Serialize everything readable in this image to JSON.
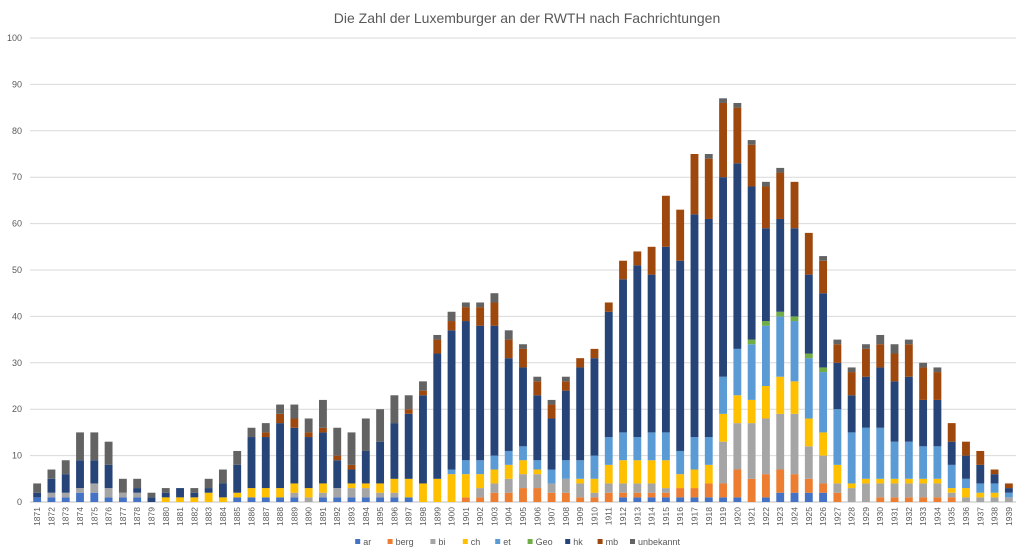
{
  "chart_data": {
    "type": "bar",
    "stacked": true,
    "title": "Die Zahl der Luxemburger an der RWTH nach Fachrichtungen",
    "xlabel": "",
    "ylabel": "",
    "ylim": [
      0,
      100
    ],
    "yticks": [
      0,
      10,
      20,
      30,
      40,
      50,
      60,
      70,
      80,
      90,
      100
    ],
    "grid": true,
    "legend_position": "bottom",
    "categories": [
      "1871",
      "1872",
      "1873",
      "1874",
      "1875",
      "1876",
      "1877",
      "1878",
      "1879",
      "1880",
      "1881",
      "1882",
      "1883",
      "1884",
      "1885",
      "1886",
      "1887",
      "1888",
      "1889",
      "1890",
      "1891",
      "1892",
      "1893",
      "1894",
      "1895",
      "1896",
      "1897",
      "1898",
      "1899",
      "1900",
      "1901",
      "1902",
      "1903",
      "1904",
      "1905",
      "1906",
      "1907",
      "1908",
      "1909",
      "1910",
      "1911",
      "1912",
      "1913",
      "1914",
      "1915",
      "1916",
      "1917",
      "1918",
      "1919",
      "1920",
      "1921",
      "1922",
      "1923",
      "1924",
      "1925",
      "1926",
      "1927",
      "1928",
      "1929",
      "1930",
      "1931",
      "1932",
      "1933",
      "1934",
      "1935",
      "1936",
      "1937",
      "1938",
      "1939"
    ],
    "series": [
      {
        "name": "ar",
        "color": "#4472C4",
        "values": [
          1,
          1,
          1,
          2,
          2,
          1,
          1,
          1,
          0,
          0,
          0,
          0,
          0,
          0,
          1,
          1,
          1,
          1,
          1,
          0,
          1,
          1,
          1,
          1,
          1,
          1,
          1,
          0,
          0,
          0,
          0,
          0,
          0,
          0,
          0,
          0,
          0,
          0,
          0,
          0,
          0,
          1,
          1,
          1,
          1,
          1,
          1,
          1,
          1,
          1,
          0,
          1,
          2,
          2,
          2,
          2,
          0,
          0,
          0,
          0,
          0,
          0,
          0,
          0,
          0,
          0,
          0,
          0,
          0
        ]
      },
      {
        "name": "berg",
        "color": "#ED7D31",
        "values": [
          0,
          0,
          0,
          0,
          0,
          0,
          0,
          0,
          0,
          0,
          0,
          0,
          0,
          0,
          0,
          0,
          0,
          0,
          0,
          0,
          0,
          0,
          0,
          0,
          0,
          0,
          0,
          0,
          0,
          0,
          1,
          1,
          2,
          2,
          3,
          3,
          2,
          2,
          1,
          1,
          2,
          1,
          1,
          1,
          1,
          2,
          2,
          3,
          3,
          6,
          5,
          5,
          5,
          4,
          3,
          2,
          2,
          0,
          0,
          1,
          1,
          1,
          1,
          1,
          1,
          0,
          0,
          0,
          0
        ]
      },
      {
        "name": "bi",
        "color": "#A5A5A5",
        "values": [
          0,
          1,
          1,
          1,
          2,
          2,
          1,
          1,
          0,
          0,
          0,
          0,
          0,
          0,
          0,
          0,
          0,
          0,
          1,
          1,
          1,
          2,
          2,
          2,
          1,
          1,
          0,
          0,
          0,
          0,
          0,
          2,
          2,
          3,
          3,
          3,
          2,
          3,
          3,
          1,
          2,
          2,
          2,
          2,
          1,
          0,
          0,
          0,
          9,
          10,
          12,
          12,
          12,
          13,
          7,
          6,
          2,
          3,
          4,
          3,
          3,
          3,
          3,
          3,
          1,
          1,
          1,
          1,
          1
        ]
      },
      {
        "name": "ch",
        "color": "#FFC000",
        "values": [
          0,
          0,
          0,
          0,
          0,
          0,
          0,
          0,
          0,
          1,
          1,
          1,
          2,
          1,
          1,
          2,
          2,
          2,
          2,
          2,
          2,
          0,
          1,
          1,
          2,
          3,
          4,
          4,
          5,
          6,
          5,
          3,
          3,
          3,
          3,
          1,
          0,
          0,
          1,
          3,
          4,
          5,
          5,
          5,
          6,
          3,
          4,
          4,
          6,
          6,
          5,
          7,
          8,
          7,
          6,
          5,
          4,
          1,
          1,
          1,
          1,
          1,
          1,
          1,
          1,
          2,
          1,
          1,
          0
        ]
      },
      {
        "name": "et",
        "color": "#5B9BD5",
        "values": [
          0,
          0,
          0,
          0,
          0,
          0,
          0,
          0,
          0,
          0,
          0,
          0,
          0,
          0,
          0,
          0,
          0,
          0,
          0,
          0,
          0,
          0,
          0,
          0,
          0,
          0,
          0,
          0,
          0,
          1,
          3,
          3,
          3,
          3,
          3,
          2,
          3,
          4,
          4,
          5,
          6,
          6,
          5,
          6,
          6,
          5,
          7,
          6,
          8,
          10,
          12,
          13,
          13,
          13,
          13,
          13,
          12,
          11,
          11,
          11,
          8,
          8,
          7,
          7,
          5,
          2,
          2,
          2,
          1
        ]
      },
      {
        "name": "Geo",
        "color": "#70AD47",
        "values": [
          0,
          0,
          0,
          0,
          0,
          0,
          0,
          0,
          0,
          0,
          0,
          0,
          0,
          0,
          0,
          0,
          0,
          0,
          0,
          0,
          0,
          0,
          0,
          0,
          0,
          0,
          0,
          0,
          0,
          0,
          0,
          0,
          0,
          0,
          0,
          0,
          0,
          0,
          0,
          0,
          0,
          0,
          0,
          0,
          0,
          0,
          0,
          0,
          0,
          0,
          1,
          1,
          1,
          1,
          1,
          1,
          0,
          0,
          0,
          0,
          0,
          0,
          0,
          0,
          0,
          0,
          0,
          0,
          0
        ]
      },
      {
        "name": "hk",
        "color": "#264478",
        "values": [
          1,
          3,
          4,
          6,
          5,
          5,
          0,
          1,
          1,
          1,
          2,
          1,
          1,
          3,
          6,
          11,
          11,
          14,
          12,
          11,
          11,
          6,
          3,
          7,
          9,
          12,
          14,
          19,
          27,
          30,
          30,
          29,
          28,
          20,
          17,
          14,
          11,
          15,
          20,
          21,
          27,
          33,
          37,
          34,
          40,
          41,
          48,
          47,
          43,
          40,
          33,
          20,
          20,
          19,
          17,
          16,
          10,
          8,
          11,
          13,
          13,
          14,
          10,
          10,
          5,
          5,
          4,
          2,
          1
        ]
      },
      {
        "name": "mb",
        "color": "#9E480E",
        "values": [
          0,
          0,
          0,
          0,
          0,
          0,
          0,
          0,
          0,
          0,
          0,
          0,
          0,
          0,
          0,
          0,
          1,
          2,
          2,
          1,
          1,
          1,
          1,
          0,
          0,
          0,
          1,
          1,
          3,
          2,
          3,
          4,
          5,
          4,
          4,
          3,
          3,
          2,
          2,
          2,
          2,
          4,
          3,
          6,
          11,
          11,
          13,
          13,
          16,
          12,
          9,
          9,
          10,
          10,
          9,
          7,
          4,
          5,
          6,
          5,
          6,
          7,
          7,
          6,
          4,
          3,
          3,
          1,
          1
        ]
      },
      {
        "name": "unbekannt",
        "color": "#636363",
        "values": [
          2,
          2,
          3,
          6,
          6,
          5,
          3,
          2,
          1,
          1,
          0,
          1,
          2,
          3,
          3,
          2,
          2,
          2,
          3,
          3,
          6,
          6,
          7,
          7,
          7,
          6,
          3,
          2,
          1,
          2,
          1,
          1,
          2,
          2,
          1,
          1,
          1,
          1,
          0,
          0,
          0,
          0,
          0,
          0,
          0,
          0,
          0,
          1,
          1,
          1,
          1,
          1,
          1,
          0,
          0,
          1,
          1,
          1,
          1,
          2,
          2,
          1,
          1,
          1,
          0,
          0,
          0,
          0,
          0
        ]
      }
    ]
  }
}
